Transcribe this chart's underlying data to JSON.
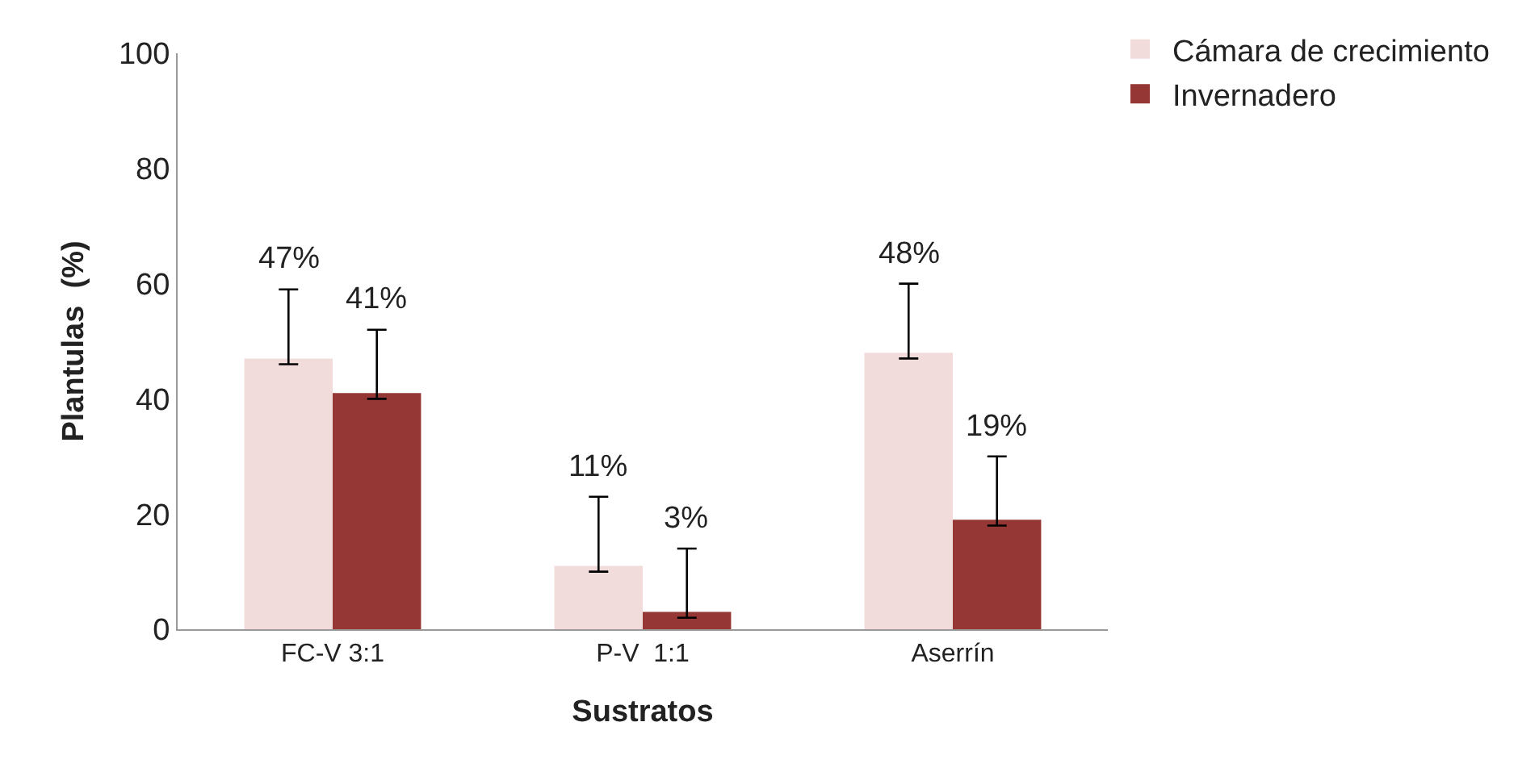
{
  "chart_data": {
    "type": "bar",
    "xlabel": "Sustratos",
    "ylabel": "Plantulas  (%)",
    "categories": [
      "FC-V 3:1",
      "P-V  1:1",
      "Aserrín"
    ],
    "series": [
      {
        "name": "Cámara de crecimiento",
        "color": "#f2dcdb",
        "values": [
          47,
          11,
          48
        ],
        "value_labels": [
          "47%",
          "11%",
          "48%"
        ],
        "errors": [
          [
            46,
            59
          ],
          [
            10,
            23
          ],
          [
            47,
            60
          ]
        ]
      },
      {
        "name": "Invernadero",
        "color": "#953735",
        "values": [
          41,
          3,
          19
        ],
        "value_labels": [
          "41%",
          "3%",
          "19%"
        ],
        "errors": [
          [
            40,
            52
          ],
          [
            2,
            14
          ],
          [
            18,
            30
          ]
        ]
      }
    ],
    "ylim": [
      0,
      100
    ],
    "yticks": [
      0,
      20,
      40,
      60,
      80,
      100
    ],
    "grid": false,
    "legend": "top right"
  }
}
